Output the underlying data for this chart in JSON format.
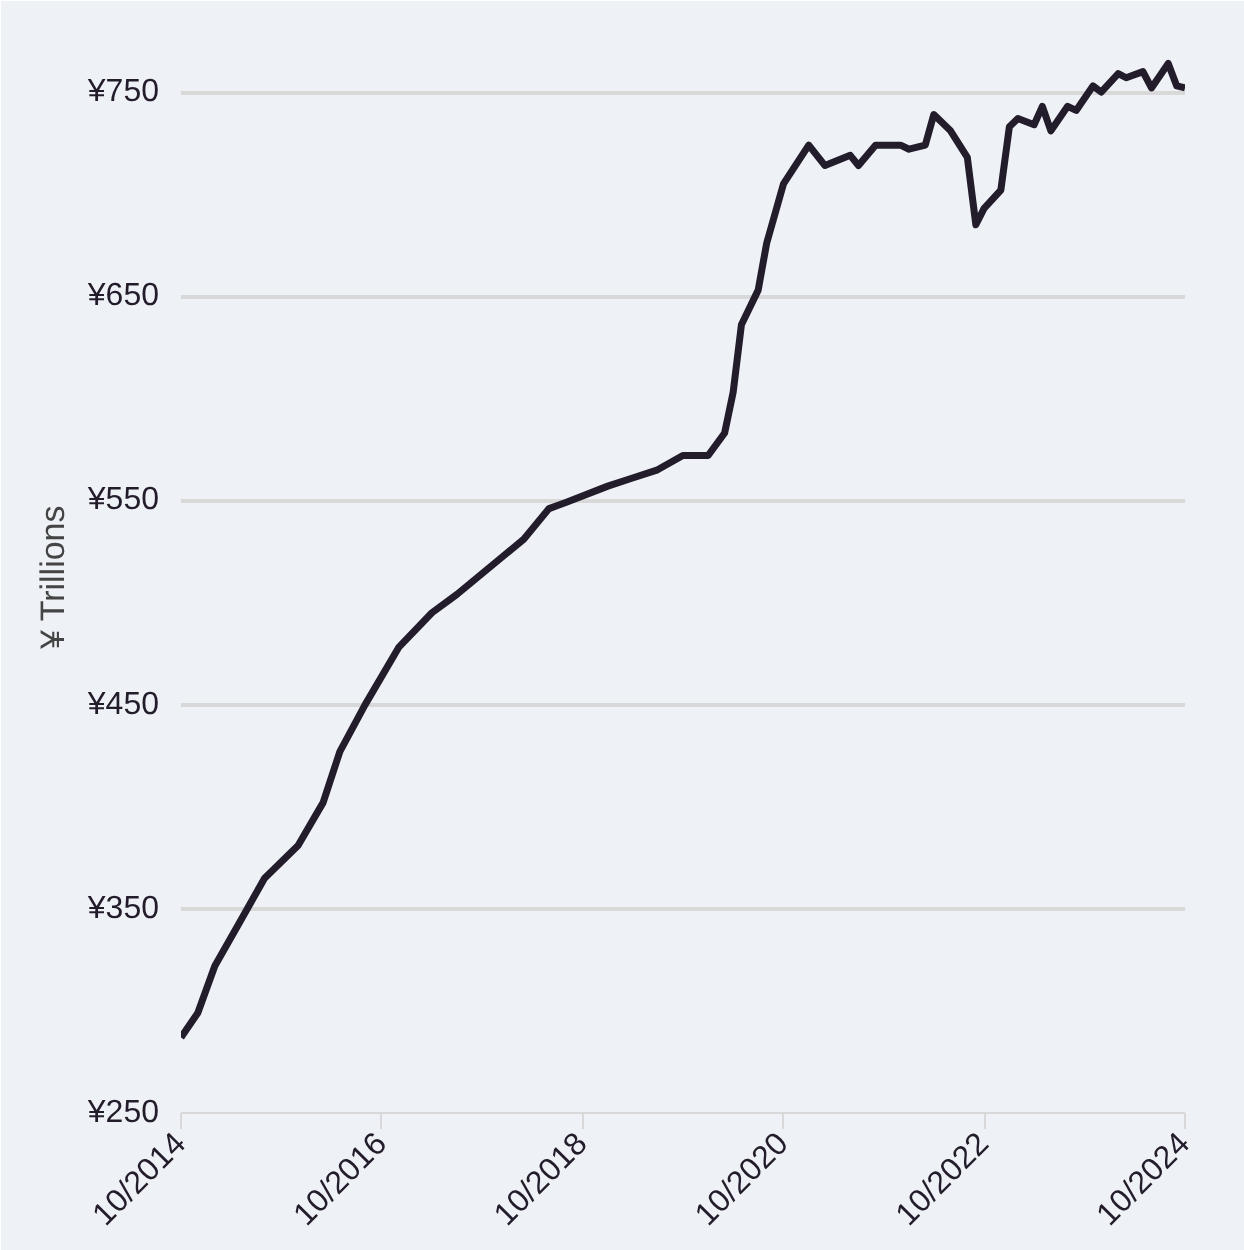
{
  "chart_data": {
    "type": "line",
    "ylabel": "¥ Trillions",
    "x": [
      "2014-10",
      "2014-12",
      "2015-02",
      "2015-05",
      "2015-08",
      "2015-12",
      "2016-03",
      "2016-05",
      "2016-08",
      "2016-12",
      "2017-04",
      "2017-07",
      "2017-12",
      "2018-03",
      "2018-06",
      "2018-08",
      "2019-01",
      "2019-04",
      "2019-07",
      "2019-10",
      "2020-01",
      "2020-03",
      "2020-04",
      "2020-05",
      "2020-07",
      "2020-08",
      "2020-10",
      "2021-01",
      "2021-03",
      "2021-06",
      "2021-07",
      "2021-09",
      "2021-12",
      "2022-01",
      "2022-03",
      "2022-04",
      "2022-06",
      "2022-08",
      "2022-09",
      "2022-10",
      "2022-12",
      "2023-01",
      "2023-02",
      "2023-04",
      "2023-05",
      "2023-06",
      "2023-08",
      "2023-09",
      "2023-11",
      "2023-12",
      "2024-02",
      "2024-03",
      "2024-05",
      "2024-06",
      "2024-08",
      "2024-09",
      "2024-10"
    ],
    "series": [
      {
        "color": "#231c2b",
        "values": [
          287,
          299,
          322,
          343,
          365,
          381,
          402,
          427,
          450,
          478,
          495,
          504,
          521,
          531,
          546,
          549,
          557,
          561,
          565,
          572,
          572,
          583,
          603,
          636,
          653,
          676,
          705,
          724,
          714,
          719,
          714,
          724,
          724,
          722,
          724,
          739,
          731,
          718,
          685,
          693,
          702,
          733,
          737,
          734,
          743,
          731,
          743,
          741,
          753,
          750,
          759,
          757,
          760,
          752,
          764,
          753,
          752
        ]
      }
    ],
    "xlim": [
      "2014-10",
      "2024-10"
    ],
    "xticks": [
      {
        "value": "2014-10",
        "label": "10/2014"
      },
      {
        "value": "2016-10",
        "label": "10/2016"
      },
      {
        "value": "2018-10",
        "label": "10/2018"
      },
      {
        "value": "2020-10",
        "label": "10/2020"
      },
      {
        "value": "2022-10",
        "label": "10/2022"
      },
      {
        "value": "2024-10",
        "label": "10/2024"
      }
    ],
    "ylim": [
      250,
      775
    ],
    "yticks": [
      {
        "value": 250,
        "label": "¥250"
      },
      {
        "value": 350,
        "label": "¥350"
      },
      {
        "value": 450,
        "label": "¥450"
      },
      {
        "value": 550,
        "label": "¥550"
      },
      {
        "value": 650,
        "label": "¥650"
      },
      {
        "value": 750,
        "label": "¥750"
      }
    ],
    "grid": "y",
    "marker": "none",
    "line_style": "solid"
  }
}
